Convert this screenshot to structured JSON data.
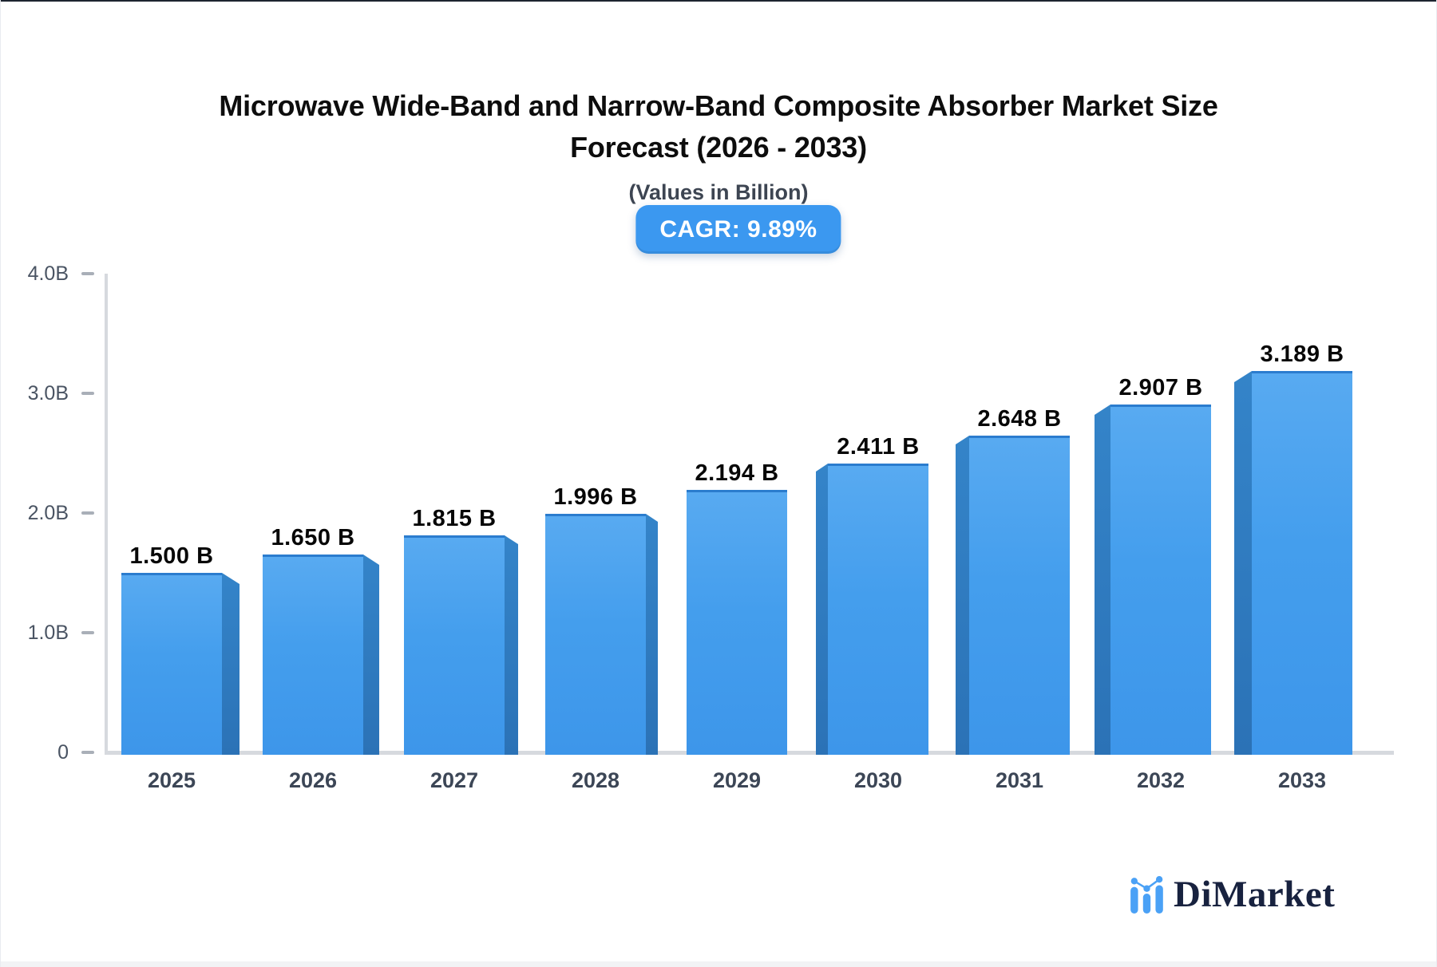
{
  "title": {
    "line1": "Microwave Wide-Band and Narrow-Band Composite Absorber Market Size",
    "line2": "Forecast (2026 - 2033)"
  },
  "subtitle": "(Values in Billion)",
  "badge": {
    "label": "CAGR: 9.89%",
    "color": "#3b98f0"
  },
  "brand": {
    "name": "DiMarket",
    "icon_color": "#4aa1f6",
    "text_color": "#18223f"
  },
  "chart_data": {
    "type": "bar",
    "title": "Microwave Wide-Band and Narrow-Band Composite Absorber Market Size Forecast (2026 - 2033)",
    "subtitle": "(Values in Billion)",
    "categories": [
      "2025",
      "2026",
      "2027",
      "2028",
      "2029",
      "2030",
      "2031",
      "2032",
      "2033"
    ],
    "values": [
      1.5,
      1.65,
      1.815,
      1.996,
      2.194,
      2.411,
      2.648,
      2.907,
      3.189
    ],
    "value_labels": [
      "1.500 B",
      "1.650 B",
      "1.815 B",
      "1.996 B",
      "2.194 B",
      "2.411 B",
      "2.648 B",
      "2.907 B",
      "3.189 B"
    ],
    "xlabel": "",
    "ylabel": "",
    "ylim": [
      0,
      4.0
    ],
    "yticks": {
      "values": [
        0,
        1,
        2,
        3,
        4
      ],
      "labels": [
        "0",
        "1.0B",
        "2.0B",
        "3.0B",
        "4.0B"
      ]
    },
    "grid": false,
    "legend_position": "none",
    "colors": {
      "bar_face_top": "#58aaf1",
      "bar_face_bottom": "#3d96ea",
      "bar_top_edge": "#2b7cce",
      "bar_side": "#2e78bd",
      "axis_line": "#d6d9de",
      "tick_label": "#4a5463",
      "category_label": "#3c4656",
      "value_label": "#070707"
    }
  }
}
